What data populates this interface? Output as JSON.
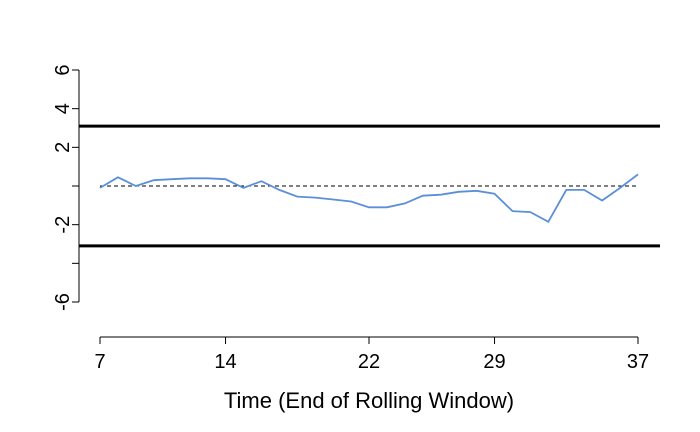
{
  "chart_data": {
    "type": "line",
    "title": "",
    "xlabel": "Time (End of Rolling Window)",
    "ylabel": "",
    "xlim": [
      7,
      37
    ],
    "ylim": [
      -6,
      6
    ],
    "x_ticks": [
      7,
      14,
      22,
      29,
      37
    ],
    "y_ticks": [
      -6,
      -4,
      -2,
      0,
      2,
      4,
      6
    ],
    "y_tick_labels": [
      "-6",
      "",
      "-2",
      "",
      "2",
      "4",
      "6"
    ],
    "grid": false,
    "legend": "none",
    "reference_lines": [
      {
        "y": 3.1,
        "style": "solid-thick",
        "color": "#000000"
      },
      {
        "y": -3.1,
        "style": "solid-thick",
        "color": "#000000"
      },
      {
        "y": 0,
        "style": "dashed",
        "color": "#000000"
      }
    ],
    "series": [
      {
        "color": "#5b8fd9",
        "x": [
          7,
          8,
          9,
          10,
          11,
          12,
          13,
          14,
          15,
          16,
          17,
          18,
          19,
          20,
          21,
          22,
          23,
          24,
          25,
          26,
          27,
          28,
          29,
          30,
          31,
          32,
          33,
          34,
          35,
          36,
          37
        ],
        "y": [
          -0.1,
          0.45,
          0.0,
          0.3,
          0.35,
          0.4,
          0.4,
          0.35,
          -0.1,
          0.25,
          -0.2,
          -0.55,
          -0.6,
          -0.7,
          -0.8,
          -1.1,
          -1.1,
          -0.9,
          -0.5,
          -0.45,
          -0.3,
          -0.25,
          -0.4,
          -1.3,
          -1.35,
          -1.85,
          -0.2,
          -0.2,
          -0.75,
          -0.1,
          0.6
        ]
      }
    ]
  }
}
